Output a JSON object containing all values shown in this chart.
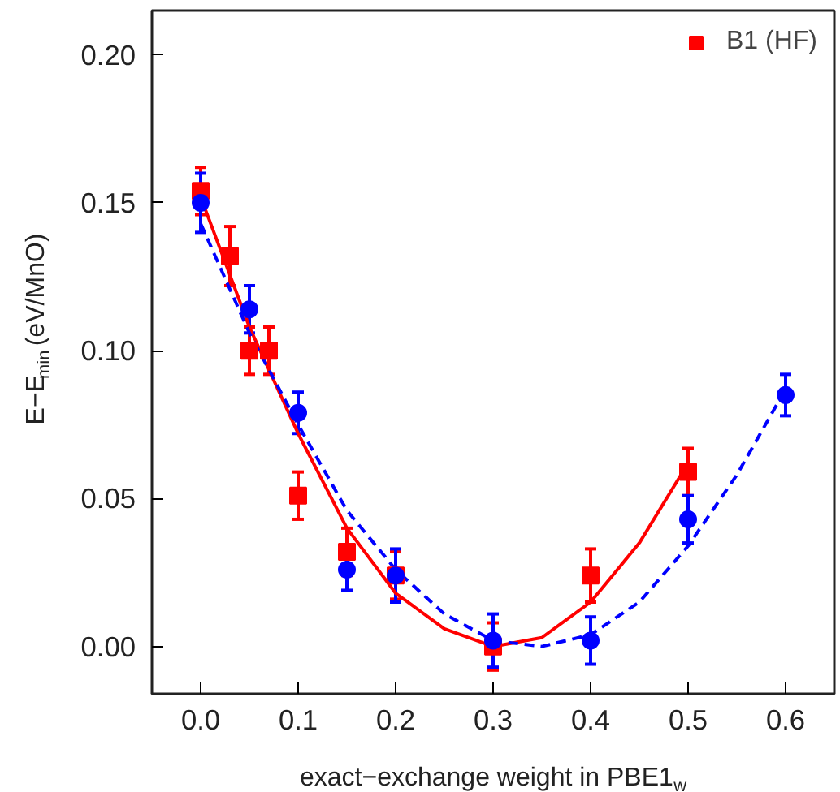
{
  "chart_data": {
    "type": "scatter",
    "xlabel": "exact−exchange weight in PBE1$_{w}$",
    "ylabel": "E−E$_{min}$ (eV/MnO)",
    "xlim": [
      -0.05,
      0.65
    ],
    "ylim": [
      -0.016,
      0.215
    ],
    "xticks": [
      {
        "value": 0,
        "label": "0.0"
      },
      0.1,
      0.2,
      0.3,
      0.4,
      0.5,
      0.6
    ],
    "yticks": [
      {
        "value": 0,
        "label": "0.00"
      },
      0.05,
      {
        "value": 0.1,
        "label": "0.10"
      },
      0.15,
      {
        "value": 0.2,
        "label": "0.20"
      }
    ],
    "grid": false,
    "legend": "top right",
    "series": [
      {
        "type": "line",
        "color": "#ff0000",
        "line_style": "solid",
        "marker": "none",
        "x": [
          0,
          0.05,
          0.1,
          0.15,
          0.2,
          0.25,
          0.3,
          0.35,
          0.4,
          0.45,
          0.5
        ],
        "values": [
          0.152,
          0.108,
          0.072,
          0.04,
          0.018,
          0.006,
          0.0,
          0.003,
          0.015,
          0.035,
          0.062
        ]
      },
      {
        "type": "line",
        "color": "#0000ff",
        "line_style": "dashed",
        "marker": "none",
        "x": [
          0,
          0.05,
          0.1,
          0.15,
          0.2,
          0.25,
          0.3,
          0.35,
          0.4,
          0.45,
          0.5,
          0.55,
          0.6
        ],
        "values": [
          0.143,
          0.106,
          0.075,
          0.046,
          0.026,
          0.011,
          0.002,
          0.0,
          0.004,
          0.015,
          0.034,
          0.058,
          0.087
        ]
      },
      {
        "name": "B1 (HF)",
        "color": "#ff0000",
        "marker": "square",
        "x": [
          0,
          0.03,
          0.05,
          0.07,
          0.1,
          0.15,
          0.2,
          0.3,
          0.4,
          0.5
        ],
        "values": [
          0.154,
          0.132,
          0.1,
          0.1,
          0.051,
          0.032,
          0.024,
          0.0,
          0.024,
          0.059
        ],
        "errors": [
          0.008,
          0.01,
          0.008,
          0.008,
          0.008,
          0.008,
          0.008,
          0.008,
          0.009,
          0.008
        ]
      },
      {
        "color": "#0000ff",
        "marker": "circle",
        "x": [
          0,
          0.05,
          0.1,
          0.15,
          0.2,
          0.3,
          0.4,
          0.5,
          0.6
        ],
        "values": [
          0.15,
          0.114,
          0.079,
          0.026,
          0.024,
          0.002,
          0.002,
          0.043,
          0.085
        ],
        "errors": [
          0.01,
          0.008,
          0.007,
          0.007,
          0.009,
          0.009,
          0.008,
          0.008,
          0.007
        ]
      }
    ]
  }
}
